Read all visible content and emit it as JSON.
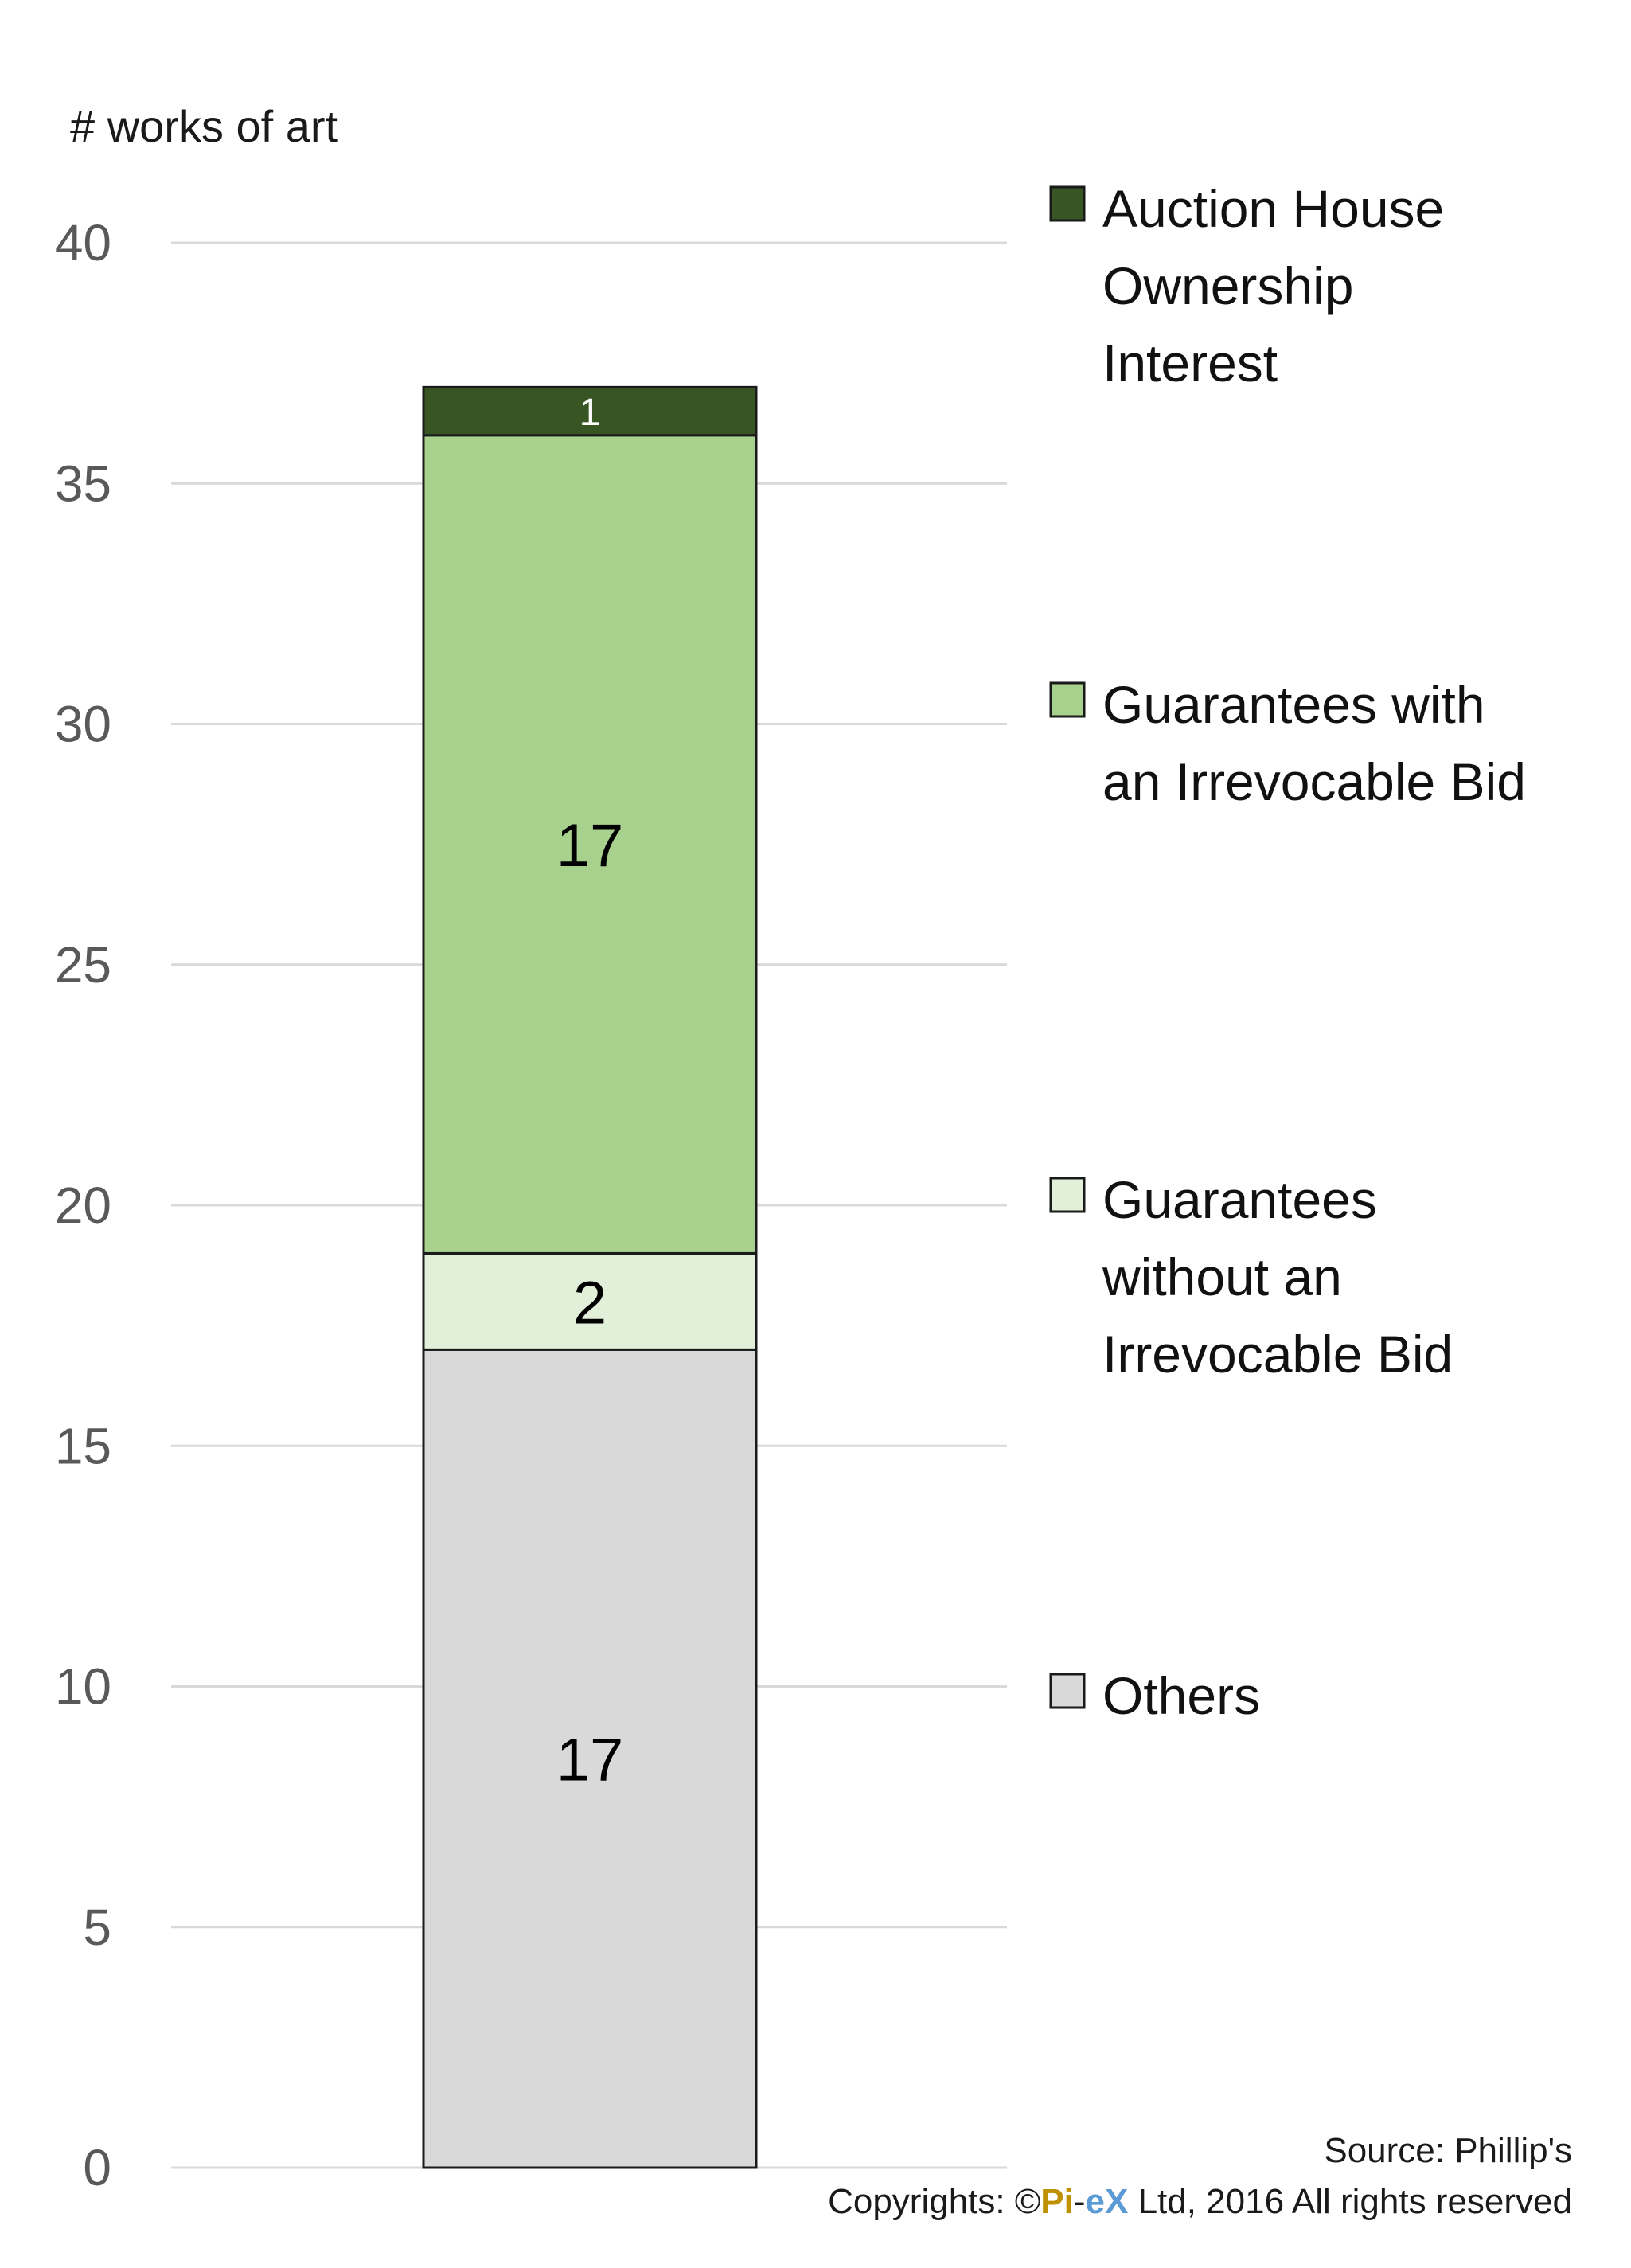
{
  "chart_data": {
    "type": "bar",
    "stacked": true,
    "ylabel": "# works of art",
    "ylim": [
      0,
      40
    ],
    "yticks": [
      "0",
      "5",
      "10",
      "15",
      "20",
      "25",
      "30",
      "35",
      "40"
    ],
    "grid": true,
    "legend_position": "right",
    "series": [
      {
        "name": "Others",
        "value": 17,
        "label": "17",
        "color": "#d9d9d9",
        "label_color": "#000000",
        "legend_lines": [
          "Others"
        ]
      },
      {
        "name": "Guarantees without an Irrevocable Bid",
        "value": 2,
        "label": "2",
        "color": "#e2f0d9",
        "label_color": "#000000",
        "legend_lines": [
          "Guarantees",
          "without an",
          "Irrevocable Bid"
        ]
      },
      {
        "name": "Guarantees with an Irrevocable Bid",
        "value": 17,
        "label": "17",
        "color": "#a9d18e",
        "label_color": "#000000",
        "legend_lines": [
          "Guarantees with",
          "an Irrevocable Bid"
        ]
      },
      {
        "name": "Auction House Ownership Interest",
        "value": 1,
        "label": "1",
        "color": "#375623",
        "label_color": "#ffffff",
        "legend_lines": [
          "Auction House",
          "Ownership",
          "Interest"
        ]
      }
    ]
  },
  "footer": {
    "source": "Source: Phillip's",
    "copyright_prefix": "Copyrights: ©",
    "brand_pi": "Pi",
    "brand_dash": "-",
    "brand_ex": "eX",
    "copyright_suffix": " Ltd, 2016 All rights reserved",
    "brand_pi_color": "#bf9000",
    "brand_ex_color": "#5b9bd5"
  }
}
